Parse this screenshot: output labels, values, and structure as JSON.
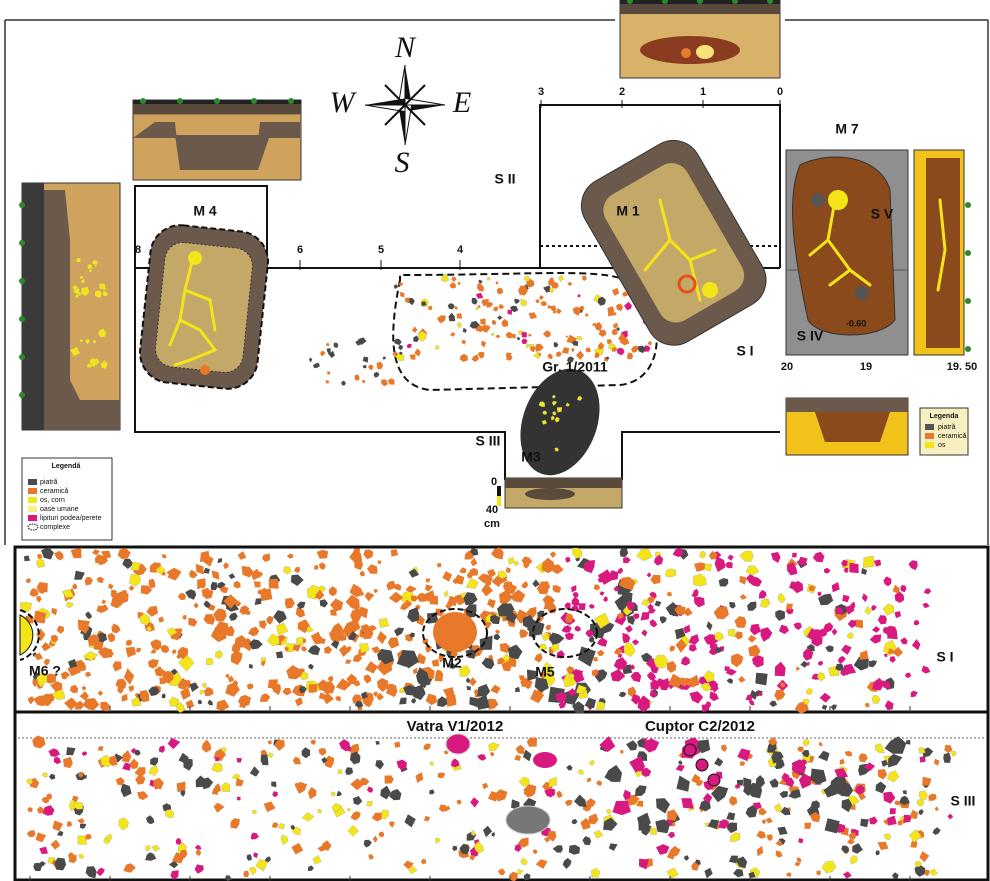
{
  "compass": {
    "north": "N",
    "west": "W",
    "east": "E",
    "south": "S"
  },
  "top_plan": {
    "trenches": {
      "s1": "S I",
      "s2": "S II",
      "s3": "S III",
      "s4": "S IV",
      "s5": "S V"
    },
    "graves": {
      "m4": "M 4",
      "m1": "M 1",
      "m3": "M3",
      "m7": "M 7"
    },
    "pit": "Gr. 1/2011",
    "scale_top": [
      "3",
      "2",
      "1",
      "0"
    ],
    "scale_mid": [
      "8",
      "6",
      "5",
      "4"
    ],
    "m7_scale": [
      "20",
      "19",
      "19. 50"
    ],
    "depth": "-0.60",
    "section_scale": [
      "0",
      "40",
      "cm"
    ]
  },
  "legend": {
    "title": "Legendă",
    "items": [
      "piatră",
      "ceramică",
      "os, corn",
      "oase umane",
      "lipituri podea/perete",
      "complexe"
    ]
  },
  "small_legend": {
    "title": "Legenda",
    "items": [
      "piatră",
      "ceramică",
      "os"
    ]
  },
  "lower_plan": {
    "s1": "S I",
    "m6": "M6 ?",
    "m2": "M2",
    "m5": "M5",
    "hearth": "Vatra V1/2012",
    "kiln": "Cuptor C2/2012",
    "s3": "S III"
  }
}
